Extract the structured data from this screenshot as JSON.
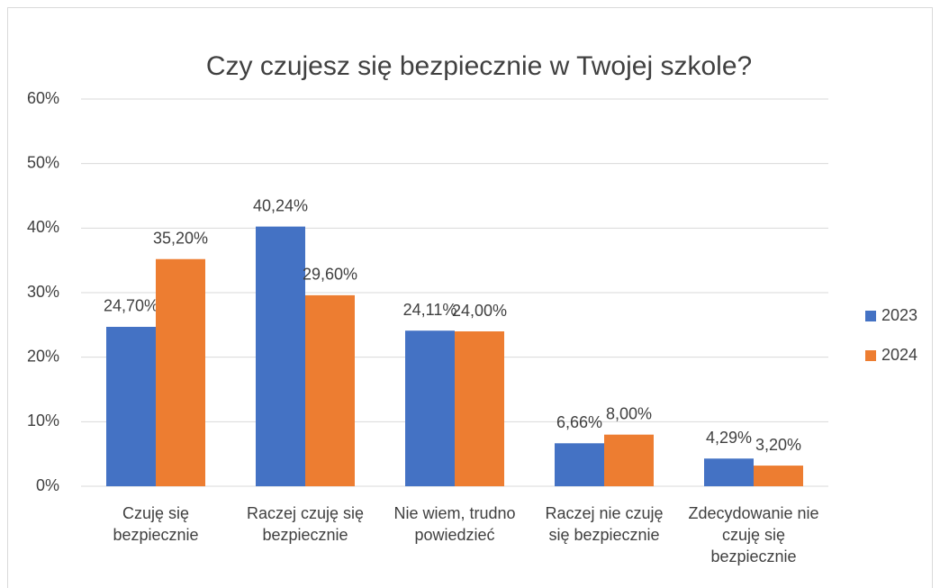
{
  "chart_data": {
    "type": "bar",
    "title": "Czy czujesz się bezpiecznie w Twojej szkole?",
    "categories": [
      "Czuję się bezpiecznie",
      "Raczej czuję się bezpiecznie",
      "Nie wiem, trudno powiedzieć",
      "Raczej nie czuję się bezpiecznie",
      "Zdecydowanie nie czuję się bezpiecznie"
    ],
    "series": [
      {
        "name": "2023",
        "color": "#4472c4",
        "values": [
          24.7,
          40.24,
          24.11,
          6.66,
          4.29
        ],
        "value_labels": [
          "24,70%",
          "40,24%",
          "24,11%",
          "6,66%",
          "4,29%"
        ]
      },
      {
        "name": "2024",
        "color": "#ed7d31",
        "values": [
          35.2,
          29.6,
          24.0,
          8.0,
          3.2
        ],
        "value_labels": [
          "35,20%",
          "29,60%",
          "24,00%",
          "8,00%",
          "3,20%"
        ]
      }
    ],
    "ylim": [
      0,
      60
    ],
    "yticks": [
      {
        "value": 0,
        "label": "0%"
      },
      {
        "value": 10,
        "label": "10%"
      },
      {
        "value": 20,
        "label": "20%"
      },
      {
        "value": 30,
        "label": "30%"
      },
      {
        "value": 40,
        "label": "40%"
      },
      {
        "value": 50,
        "label": "50%"
      },
      {
        "value": 60,
        "label": "60%"
      }
    ],
    "grid": true,
    "legend": "right"
  }
}
